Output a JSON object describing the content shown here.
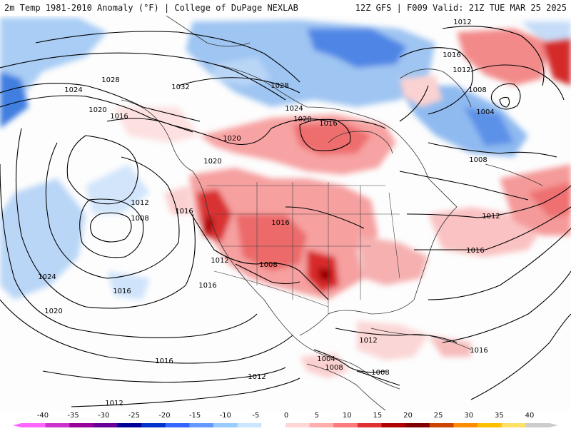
{
  "header": {
    "left": "2m Temp 1981-2010 Anomaly (°F) | College of DuPage NEXLAB",
    "right": "12Z GFS | F009 Valid: 21Z TUE MAR 25 2025"
  },
  "colorbar": {
    "ticks": [
      "-40",
      "-35",
      "-30",
      "-25",
      "-20",
      "-15",
      "-10",
      "-5",
      "0",
      "5",
      "10",
      "15",
      "20",
      "25",
      "30",
      "35",
      "40"
    ],
    "colors": [
      "#ff66ff",
      "#cc33cc",
      "#990099",
      "#660099",
      "#000099",
      "#0033cc",
      "#3366ff",
      "#6699ff",
      "#99ccff",
      "#cce6ff",
      "#ffffff",
      "#ffd6d6",
      "#ffadad",
      "#ff7a7a",
      "#e03030",
      "#b00000",
      "#800000",
      "#cc4400",
      "#ff8c00",
      "#ffc000",
      "#ffe066",
      "#cccccc"
    ]
  },
  "isobar_labels": [
    {
      "text": "1012",
      "name": "isobar-label-1012-ne"
    },
    {
      "text": "1016",
      "name": "isobar-label-1016-ne"
    },
    {
      "text": "1012",
      "name": "isobar-label-1012-ne2"
    },
    {
      "text": "1008",
      "name": "isobar-label-1008-ne"
    },
    {
      "text": "1004",
      "name": "isobar-label-1004-ne"
    },
    {
      "text": "1024",
      "name": "isobar-label-1024-alaska"
    },
    {
      "text": "1028",
      "name": "isobar-label-1028-alaska"
    },
    {
      "text": "1032",
      "name": "isobar-label-1032-canada"
    },
    {
      "text": "1028",
      "name": "isobar-label-1028-canada"
    },
    {
      "text": "1024",
      "name": "isobar-label-1024-canada"
    },
    {
      "text": "1020",
      "name": "isobar-label-1020-alaska"
    },
    {
      "text": "1016",
      "name": "isobar-label-1016-alaska"
    },
    {
      "text": "1020",
      "name": "isobar-label-1020-canada"
    },
    {
      "text": "1016",
      "name": "isobar-label-1016-hudson"
    },
    {
      "text": "1020",
      "name": "isobar-label-1020-bc"
    },
    {
      "text": "1020",
      "name": "isobar-label-1020-pnw"
    },
    {
      "text": "1012",
      "name": "isobar-label-1012-pacific"
    },
    {
      "text": "1008",
      "name": "isobar-label-1008-pacific"
    },
    {
      "text": "1016",
      "name": "isobar-label-1016-west"
    },
    {
      "text": "1016",
      "name": "isobar-label-1016-idaho"
    },
    {
      "text": "1012",
      "name": "isobar-label-1012-california"
    },
    {
      "text": "1008",
      "name": "isobar-label-1008-southwest"
    },
    {
      "text": "1024",
      "name": "isobar-label-1024-pacific"
    },
    {
      "text": "1016",
      "name": "isobar-label-1016-pacific-s"
    },
    {
      "text": "1016",
      "name": "isobar-label-1016-baja"
    },
    {
      "text": "1020",
      "name": "isobar-label-1020-pacific-sw"
    },
    {
      "text": "1008",
      "name": "isobar-label-1008-atlantic"
    },
    {
      "text": "1012",
      "name": "isobar-label-1012-atlantic"
    },
    {
      "text": "1016",
      "name": "isobar-label-1016-atlantic"
    },
    {
      "text": "1016",
      "name": "isobar-label-1016-caribbean"
    },
    {
      "text": "1012",
      "name": "isobar-label-1012-gulf"
    },
    {
      "text": "1004",
      "name": "isobar-label-1004-mexico"
    },
    {
      "text": "1008",
      "name": "isobar-label-1008-mexico"
    },
    {
      "text": "1008",
      "name": "isobar-label-1008-central-am"
    },
    {
      "text": "1016",
      "name": "isobar-label-1016-pacific-se"
    },
    {
      "text": "1012",
      "name": "isobar-label-1012-pacific-se"
    },
    {
      "text": "1012",
      "name": "isobar-label-1012-pacific-sw"
    }
  ]
}
